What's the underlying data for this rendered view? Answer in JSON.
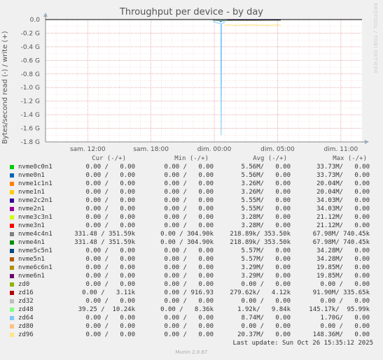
{
  "chart_data": {
    "type": "line",
    "title": "Throughput per device - by day",
    "ylabel": "Bytes/second read (-) / write (+)",
    "y_ticks": [
      "0.0",
      "-0.2 G",
      "-0.4 G",
      "-0.6 G",
      "-0.8 G",
      "-1.0 G",
      "-1.2 G",
      "-1.4 G",
      "-1.6 G",
      "-1.8 G"
    ],
    "ylim": [
      -1.8,
      0.0
    ],
    "y_unit": "G",
    "x_ticks": [
      "sam. 12:00",
      "sam. 18:00",
      "dim. 00:00",
      "dim. 05:00",
      "dim. 11:00"
    ],
    "x_range_hours": [
      0,
      30
    ],
    "x_tick_hours": [
      4,
      10,
      16,
      22,
      28
    ],
    "grid": true,
    "legend_placement": "bottom",
    "series": [
      {
        "name": "zd64",
        "color": "#80c8f8",
        "points": [
          [
            15.9,
            -0.03
          ],
          [
            16.3,
            -0.05
          ],
          [
            16.6,
            -0.06
          ],
          [
            16.65,
            -1.7
          ],
          [
            16.7,
            -0.06
          ],
          [
            17.0,
            -0.04
          ]
        ]
      },
      {
        "name": "nvme0n1",
        "color": "#0066b3",
        "points": [
          [
            15.9,
            -0.01
          ],
          [
            16.5,
            -0.015
          ],
          [
            16.6,
            -0.035
          ],
          [
            16.7,
            -0.02
          ],
          [
            17.2,
            -0.015
          ],
          [
            17.8,
            -0.012
          ]
        ]
      },
      {
        "name": "zd96",
        "color": "#ffe070",
        "points": [
          [
            17.0,
            -0.08
          ],
          [
            18.0,
            -0.085
          ],
          [
            19.5,
            -0.08
          ],
          [
            21.0,
            -0.085
          ],
          [
            22.3,
            -0.08
          ]
        ]
      },
      {
        "name": "nvme4n1",
        "color": "#008f00",
        "points": [
          [
            16.0,
            -0.01
          ],
          [
            18.0,
            -0.015
          ],
          [
            20.0,
            -0.012
          ],
          [
            22.3,
            -0.012
          ]
        ]
      },
      {
        "name": "nvme4c4n1",
        "color": "#c0c0c0",
        "points": [
          [
            16.0,
            -0.008
          ],
          [
            18.0,
            -0.012
          ],
          [
            20.0,
            -0.01
          ],
          [
            22.3,
            -0.01
          ]
        ]
      },
      {
        "name": "nvme1n1",
        "color": "#ffcc00",
        "points": [
          [
            17.2,
            -0.006
          ],
          [
            19.0,
            -0.007
          ],
          [
            21.0,
            -0.006
          ],
          [
            22.3,
            -0.006
          ]
        ]
      },
      {
        "name": "nvme2n1",
        "color": "#8000aa",
        "points": [
          [
            17.2,
            -0.004
          ],
          [
            20.0,
            -0.005
          ],
          [
            22.3,
            -0.004
          ]
        ]
      },
      {
        "name": "nvme2c2n1",
        "color": "#330099",
        "points": [
          [
            17.2,
            -0.005
          ],
          [
            20.0,
            -0.006
          ],
          [
            22.3,
            -0.005
          ]
        ]
      }
    ]
  },
  "legend": {
    "headers": [
      "Cur (-/+)",
      "Min (-/+)",
      "Avg (-/+)",
      "Max (-/+)"
    ],
    "rows": [
      {
        "name": "nvme0c0n1",
        "color": "#00cc00",
        "cur": "0.00 /   0.00",
        "min": "0.00 /   0.00",
        "avg": "5.56M/   0.00",
        "max": "33.73M/   0.00"
      },
      {
        "name": "nvme0n1",
        "color": "#0066b3",
        "cur": "0.00 /   0.00",
        "min": "0.00 /   0.00",
        "avg": "5.56M/   0.00",
        "max": "33.73M/   0.00"
      },
      {
        "name": "nvme1c1n1",
        "color": "#ff8000",
        "cur": "0.00 /   0.00",
        "min": "0.00 /   0.00",
        "avg": "3.26M/   0.00",
        "max": "20.04M/   0.00"
      },
      {
        "name": "nvme1n1",
        "color": "#ffcc00",
        "cur": "0.00 /   0.00",
        "min": "0.00 /   0.00",
        "avg": "3.26M/   0.00",
        "max": "20.04M/   0.00"
      },
      {
        "name": "nvme2c2n1",
        "color": "#330099",
        "cur": "0.00 /   0.00",
        "min": "0.00 /   0.00",
        "avg": "5.55M/   0.00",
        "max": "34.03M/   0.00"
      },
      {
        "name": "nvme2n1",
        "color": "#990099",
        "cur": "0.00 /   0.00",
        "min": "0.00 /   0.00",
        "avg": "5.55M/   0.00",
        "max": "34.03M/   0.00"
      },
      {
        "name": "nvme3c3n1",
        "color": "#ccff00",
        "cur": "0.00 /   0.00",
        "min": "0.00 /   0.00",
        "avg": "3.28M/   0.00",
        "max": "21.12M/   0.00"
      },
      {
        "name": "nvme3n1",
        "color": "#ff0000",
        "cur": "0.00 /   0.00",
        "min": "0.00 /   0.00",
        "avg": "3.28M/   0.00",
        "max": "21.12M/   0.00"
      },
      {
        "name": "nvme4c4n1",
        "color": "#808080",
        "cur": "331.48 / 351.59k",
        "min": "0.00 / 304.90k",
        "avg": "218.89k/ 353.50k",
        "max": "67.98M/ 740.45k"
      },
      {
        "name": "nvme4n1",
        "color": "#008f00",
        "cur": "331.48 / 351.59k",
        "min": "0.00 / 304.90k",
        "avg": "218.89k/ 353.50k",
        "max": "67.98M/ 740.45k"
      },
      {
        "name": "nvme5c5n1",
        "color": "#00487d",
        "cur": "0.00 /   0.00",
        "min": "0.00 /   0.00",
        "avg": "5.57M/   0.00",
        "max": "34.28M/   0.00"
      },
      {
        "name": "nvme5n1",
        "color": "#b35a00",
        "cur": "0.00 /   0.00",
        "min": "0.00 /   0.00",
        "avg": "5.57M/   0.00",
        "max": "34.28M/   0.00"
      },
      {
        "name": "nvme6c6n1",
        "color": "#b38f00",
        "cur": "0.00 /   0.00",
        "min": "0.00 /   0.00",
        "avg": "3.29M/   0.00",
        "max": "19.85M/   0.00"
      },
      {
        "name": "nvme6n1",
        "color": "#6b006b",
        "cur": "0.00 /   0.00",
        "min": "0.00 /   0.00",
        "avg": "3.29M/   0.00",
        "max": "19.85M/   0.00"
      },
      {
        "name": "zd0",
        "color": "#8fb300",
        "cur": "0.00 /   0.00",
        "min": "0.00 /   0.00",
        "avg": "0.00 /   0.00",
        "max": "0.00 /   0.00"
      },
      {
        "name": "zd16",
        "color": "#b30000",
        "cur": "0.00 /   3.11k",
        "min": "0.00 / 916.93",
        "avg": "279.62k/   4.12k",
        "max": "91.90M/ 335.65k"
      },
      {
        "name": "zd32",
        "color": "#bebebe",
        "cur": "0.00 /   0.00",
        "min": "0.00 /   0.00",
        "avg": "0.00 /   0.00",
        "max": "0.00 /   0.00"
      },
      {
        "name": "zd48",
        "color": "#80ff80",
        "cur": "39.25 /  10.24k",
        "min": "0.00 /   8.36k",
        "avg": "1.92k/   9.84k",
        "max": "145.17k/  95.99k"
      },
      {
        "name": "zd64",
        "color": "#80c8f8",
        "cur": "0.00 /   0.00",
        "min": "0.00 /   0.00",
        "avg": "8.74M/   0.00",
        "max": "1.70G/   0.00"
      },
      {
        "name": "zd80",
        "color": "#ffc080",
        "cur": "0.00 /   0.00",
        "min": "0.00 /   0.00",
        "avg": "0.00 /   0.00",
        "max": "0.00 /   0.00"
      },
      {
        "name": "zd96",
        "color": "#ffe680",
        "cur": "0.00 /   0.00",
        "min": "0.00 /   0.00",
        "avg": "20.37M/   0.00",
        "max": "148.36M/   0.00"
      }
    ]
  },
  "last_update": "Last update: Sun Oct 26 15:35:12 2025",
  "watermark": "RRDTOOL / TOBI OETIKER",
  "version": "Munin 2.0.67"
}
